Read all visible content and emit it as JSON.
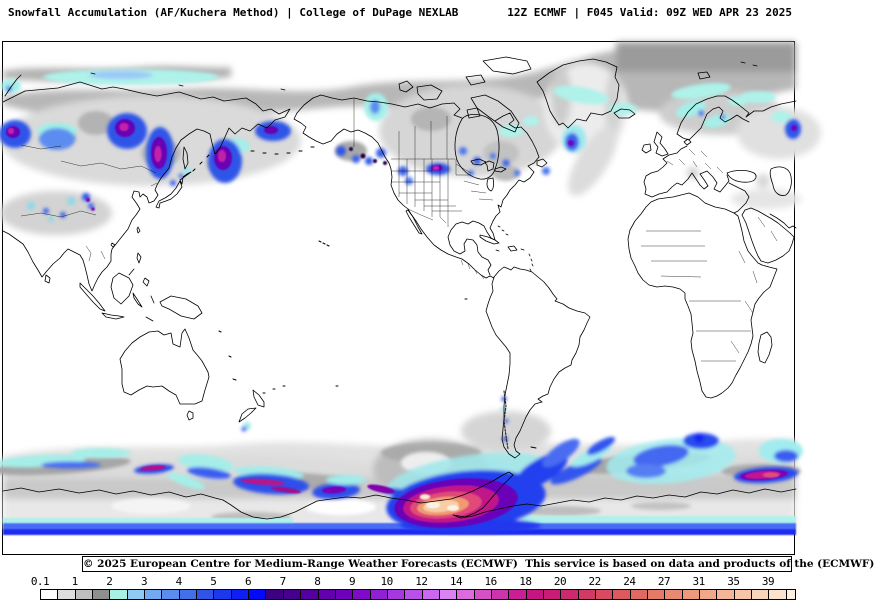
{
  "header": {
    "left_title": "Snowfall Accumulation (AF/Kuchera Method) | College of DuPage NEXLAB",
    "right_title": "12Z ECMWF | F045 Valid: 09Z WED APR 23 2025"
  },
  "footer": {
    "attribution": "© 2025 European Centre for Medium-Range Weather Forecasts (ECMWF)  This service is based on data and products of the (ECMWF)"
  },
  "colorbar": {
    "tick_labels": [
      "0.1",
      "1",
      "2",
      "3",
      "4",
      "5",
      "6",
      "7",
      "8",
      "9",
      "10",
      "12",
      "14",
      "16",
      "18",
      "20",
      "22",
      "24",
      "27",
      "31",
      "35",
      "39"
    ],
    "segment_colors": [
      "#ffffff",
      "#dedede",
      "#bfbfbf",
      "#8f8f8f",
      "#a8efe4",
      "#90c9f2",
      "#72aaf2",
      "#5a8dee",
      "#4270e8",
      "#2f54e6",
      "#1d38ec",
      "#0e1ef4",
      "#020afa",
      "#3d0080",
      "#47008e",
      "#53009e",
      "#6100ac",
      "#6f00ba",
      "#7f0ac8",
      "#9120d4",
      "#a538e0",
      "#b950ea",
      "#cc68f0",
      "#da82f2",
      "#dc6cde",
      "#d550c6",
      "#cd34ac",
      "#c82094",
      "#c41580",
      "#c81c76",
      "#cc2a6e",
      "#d23a66",
      "#d84a60",
      "#dc5a5e",
      "#e06a62",
      "#e47a68",
      "#e88a72",
      "#ec9a7e",
      "#f0a88a",
      "#f4b698",
      "#f6c4a8",
      "#f8d4ba",
      "#fae2cc",
      "#fdf0e0"
    ],
    "boxes_per_label_interval": 2,
    "trailing_half_segment": true
  },
  "map": {
    "kind": "global snowfall accumulation map, Pacific-centered equirectangular",
    "ocean_color": "#ffffff",
    "coastline_color": "#000000"
  }
}
